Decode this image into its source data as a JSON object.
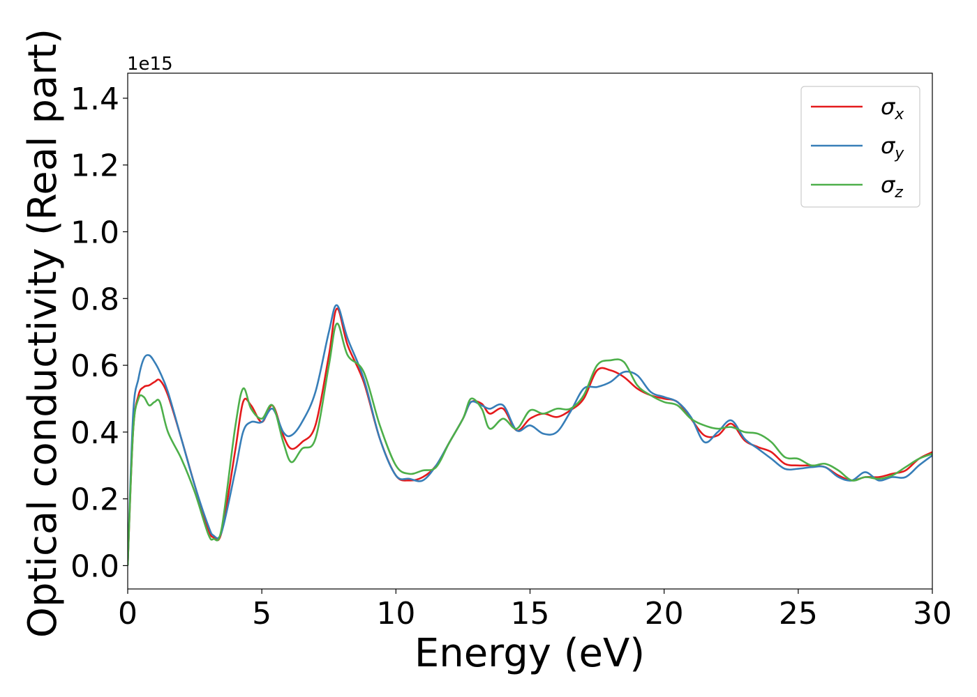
{
  "chart_data": {
    "type": "line",
    "title": "",
    "xlabel": "Energy (eV)",
    "ylabel": "Optical conductivity (Real part)",
    "y_offset_label": "1e15",
    "xlim": [
      0,
      30
    ],
    "ylim": [
      -0.07,
      1.475
    ],
    "xticks": [
      0,
      5,
      10,
      15,
      20,
      25,
      30
    ],
    "xtick_labels": [
      "0",
      "5",
      "10",
      "15",
      "20",
      "25",
      "30"
    ],
    "yticks": [
      0.0,
      0.2,
      0.4,
      0.6,
      0.8,
      1.0,
      1.2,
      1.4
    ],
    "ytick_labels": [
      "0.0",
      "0.2",
      "0.4",
      "0.6",
      "0.8",
      "1.0",
      "1.2",
      "1.4"
    ],
    "grid": false,
    "legend_position": "top-right",
    "series": [
      {
        "name": "σx",
        "label_base": "σ",
        "label_sub": "x",
        "color": "#e41a1c",
        "x": [
          0,
          0.2,
          0.4,
          0.6,
          0.8,
          1.0,
          1.2,
          1.5,
          2.0,
          2.5,
          3.0,
          3.2,
          3.5,
          4.0,
          4.3,
          4.6,
          5.0,
          5.4,
          5.8,
          6.1,
          6.5,
          7.0,
          7.5,
          7.8,
          8.2,
          8.8,
          9.4,
          10.0,
          10.5,
          11.0,
          11.5,
          12.0,
          12.5,
          12.8,
          13.2,
          13.5,
          14.0,
          14.5,
          15.0,
          15.5,
          16.0,
          16.5,
          17.0,
          17.5,
          18.0,
          18.5,
          19.0,
          19.5,
          20.0,
          20.5,
          21.0,
          21.5,
          22.0,
          22.5,
          23.0,
          23.5,
          24.0,
          24.5,
          25.0,
          25.5,
          26.0,
          26.5,
          27.0,
          27.5,
          28.0,
          28.5,
          29.0,
          29.5,
          30.0
        ],
        "values": [
          0.0,
          0.4,
          0.51,
          0.535,
          0.54,
          0.55,
          0.555,
          0.51,
          0.38,
          0.24,
          0.11,
          0.085,
          0.1,
          0.34,
          0.49,
          0.48,
          0.43,
          0.48,
          0.39,
          0.35,
          0.37,
          0.42,
          0.63,
          0.77,
          0.66,
          0.55,
          0.38,
          0.27,
          0.255,
          0.265,
          0.3,
          0.37,
          0.44,
          0.49,
          0.485,
          0.455,
          0.47,
          0.405,
          0.44,
          0.455,
          0.445,
          0.465,
          0.5,
          0.585,
          0.585,
          0.565,
          0.53,
          0.51,
          0.5,
          0.49,
          0.44,
          0.39,
          0.39,
          0.425,
          0.375,
          0.355,
          0.34,
          0.305,
          0.3,
          0.3,
          0.295,
          0.27,
          0.255,
          0.265,
          0.265,
          0.275,
          0.285,
          0.32,
          0.34
        ]
      },
      {
        "name": "σy",
        "label_base": "σ",
        "label_sub": "y",
        "color": "#377eb8",
        "x": [
          0,
          0.2,
          0.4,
          0.6,
          0.8,
          1.0,
          1.2,
          1.5,
          2.0,
          2.5,
          3.0,
          3.2,
          3.5,
          4.0,
          4.3,
          4.6,
          5.0,
          5.4,
          5.8,
          6.1,
          6.5,
          7.0,
          7.5,
          7.8,
          8.2,
          8.8,
          9.4,
          10.0,
          10.5,
          11.0,
          11.5,
          12.0,
          12.5,
          12.8,
          13.2,
          13.5,
          14.0,
          14.5,
          15.0,
          15.5,
          16.0,
          16.5,
          17.0,
          17.5,
          18.0,
          18.5,
          19.0,
          19.5,
          20.0,
          20.5,
          21.0,
          21.5,
          22.0,
          22.5,
          23.0,
          23.5,
          24.0,
          24.5,
          25.0,
          25.5,
          26.0,
          26.5,
          27.0,
          27.5,
          28.0,
          28.5,
          29.0,
          29.5,
          30.0
        ],
        "values": [
          0.0,
          0.45,
          0.56,
          0.62,
          0.63,
          0.61,
          0.58,
          0.52,
          0.38,
          0.24,
          0.12,
          0.09,
          0.1,
          0.28,
          0.4,
          0.43,
          0.43,
          0.47,
          0.4,
          0.39,
          0.43,
          0.52,
          0.7,
          0.78,
          0.68,
          0.56,
          0.38,
          0.27,
          0.26,
          0.255,
          0.3,
          0.37,
          0.44,
          0.49,
          0.48,
          0.47,
          0.48,
          0.405,
          0.42,
          0.395,
          0.4,
          0.46,
          0.53,
          0.535,
          0.55,
          0.58,
          0.57,
          0.52,
          0.505,
          0.49,
          0.445,
          0.37,
          0.4,
          0.435,
          0.38,
          0.35,
          0.32,
          0.29,
          0.29,
          0.295,
          0.295,
          0.265,
          0.255,
          0.28,
          0.255,
          0.265,
          0.265,
          0.3,
          0.33
        ]
      },
      {
        "name": "σz",
        "label_base": "σ",
        "label_sub": "z",
        "color": "#4daf4a",
        "x": [
          0,
          0.2,
          0.4,
          0.6,
          0.8,
          1.0,
          1.2,
          1.5,
          2.0,
          2.5,
          3.0,
          3.2,
          3.5,
          4.0,
          4.3,
          4.6,
          5.0,
          5.4,
          5.8,
          6.1,
          6.5,
          7.0,
          7.5,
          7.8,
          8.2,
          8.8,
          9.4,
          10.0,
          10.5,
          11.0,
          11.5,
          12.0,
          12.5,
          12.8,
          13.2,
          13.5,
          14.0,
          14.5,
          15.0,
          15.5,
          16.0,
          16.5,
          17.0,
          17.5,
          18.0,
          18.5,
          19.0,
          19.5,
          20.0,
          20.5,
          21.0,
          21.5,
          22.0,
          22.5,
          23.0,
          23.5,
          24.0,
          24.5,
          25.0,
          25.5,
          26.0,
          26.5,
          27.0,
          27.5,
          28.0,
          28.5,
          29.0,
          29.5,
          30.0
        ],
        "values": [
          0.0,
          0.4,
          0.5,
          0.505,
          0.48,
          0.49,
          0.49,
          0.4,
          0.32,
          0.22,
          0.095,
          0.08,
          0.11,
          0.41,
          0.53,
          0.47,
          0.44,
          0.48,
          0.37,
          0.31,
          0.35,
          0.38,
          0.6,
          0.725,
          0.63,
          0.58,
          0.42,
          0.3,
          0.275,
          0.285,
          0.295,
          0.37,
          0.44,
          0.5,
          0.47,
          0.41,
          0.44,
          0.41,
          0.465,
          0.455,
          0.47,
          0.47,
          0.51,
          0.6,
          0.615,
          0.61,
          0.54,
          0.51,
          0.49,
          0.48,
          0.44,
          0.42,
          0.41,
          0.415,
          0.4,
          0.395,
          0.37,
          0.325,
          0.32,
          0.3,
          0.305,
          0.285,
          0.255,
          0.265,
          0.26,
          0.27,
          0.295,
          0.32,
          0.335
        ]
      }
    ]
  }
}
